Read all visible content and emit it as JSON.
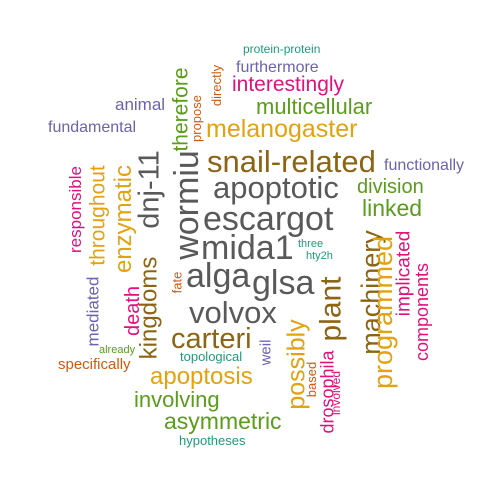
{
  "words": {
    "protein_protein": "protein-protein",
    "furthermore": "furthermore",
    "directly": "directly",
    "therefore": "therefore",
    "interestingly": "interestingly",
    "propose": "propose",
    "animal": "animal",
    "multicellular": "multicellular",
    "fundamental": "fundamental",
    "melanogaster": "melanogaster",
    "dnj11": "dnj-11",
    "wormiu": "wormiu",
    "snail_related": "snail-related",
    "functionally": "functionally",
    "responsible": "responsible",
    "throughout": "throughout",
    "enzymatic": "enzymatic",
    "apoptotic": "apoptotic",
    "division": "division",
    "linked": "linked",
    "escargot": "escargot",
    "three": "three",
    "hty2h": "hty2h",
    "mida1": "mida1",
    "alga": "alga",
    "glsa": "glsa",
    "kingdoms": "kingdoms",
    "death": "death",
    "fate": "fate",
    "mediated": "mediated",
    "plant": "plant",
    "machinery": "machinery",
    "programmed": "programmed",
    "implicated": "implicated",
    "components": "components",
    "volvox": "volvox",
    "carteri": "carteri",
    "already": "already",
    "topological": "topological",
    "weil": "weil",
    "possibly": "possibly",
    "specifically": "specifically",
    "apoptosis": "apoptosis",
    "drosophila": "drosophila",
    "based": "based",
    "involved": "involved",
    "involving": "involving",
    "asymmetric": "asymmetric",
    "hypotheses": "hypotheses"
  },
  "colors": {
    "gray": "#595959",
    "brown": "#8c6414",
    "gold": "#e3a20f",
    "green": "#5a9c1b",
    "pink": "#e0107c",
    "purple": "#6a63ad",
    "orange": "#cf5a0f",
    "teal": "#1e9b79"
  }
}
